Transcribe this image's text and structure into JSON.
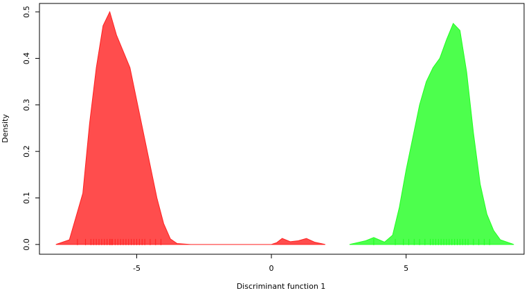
{
  "chart_data": {
    "type": "density",
    "x_label": "Discriminant function 1",
    "y_label": "Density",
    "xlim": [
      -8.61,
      9.38
    ],
    "ylim": [
      -0.021,
      0.518
    ],
    "xticks": [
      -5,
      0,
      5
    ],
    "yticks": [
      {
        "value": 0,
        "label": "0.0"
      },
      0.1,
      0.2,
      0.3,
      0.4,
      0.5
    ],
    "series": [
      {
        "color": "#ff2020",
        "x": [
          -8,
          -7.5,
          -7,
          -6.75,
          -6.5,
          -6.25,
          -6,
          -5.75,
          -5.5,
          -5.25,
          -5,
          -4.75,
          -4.5,
          -4.25,
          -4,
          -3.75,
          -3.5,
          -3,
          -2,
          -1,
          0,
          0.2,
          0.4,
          0.7,
          1.0,
          1.3,
          1.6,
          2.0
        ],
        "values": [
          0,
          0.01,
          0.11,
          0.26,
          0.38,
          0.47,
          0.5,
          0.45,
          0.415,
          0.38,
          0.31,
          0.24,
          0.17,
          0.1,
          0.045,
          0.012,
          0.002,
          0,
          0,
          0,
          0,
          0.004,
          0.013,
          0.006,
          0.008,
          0.013,
          0.005,
          0
        ],
        "rug": [
          -7.2,
          -6.9,
          -6.7,
          -6.6,
          -6.5,
          -6.4,
          -6.3,
          -6.2,
          -6.1,
          -6.0,
          -5.95,
          -5.9,
          -5.8,
          -5.7,
          -5.6,
          -5.5,
          -5.4,
          -5.3,
          -5.2,
          -5.1,
          -5.0,
          -4.9,
          -4.8,
          -4.7,
          -4.5,
          -4.3,
          -4.1
        ]
      },
      {
        "color": "#20ff20",
        "x": [
          2.9,
          3.5,
          3.8,
          4.2,
          4.5,
          4.75,
          5,
          5.5,
          5.75,
          6,
          6.25,
          6.5,
          6.75,
          7,
          7.25,
          7.5,
          7.75,
          8,
          8.25,
          8.5,
          9.0
        ],
        "values": [
          0,
          0.008,
          0.015,
          0.005,
          0.02,
          0.08,
          0.16,
          0.3,
          0.35,
          0.38,
          0.4,
          0.44,
          0.475,
          0.46,
          0.37,
          0.24,
          0.13,
          0.065,
          0.03,
          0.01,
          0
        ],
        "rug": [
          3.8,
          4.6,
          4.9,
          5.1,
          5.3,
          5.5,
          5.7,
          5.9,
          6.0,
          6.1,
          6.2,
          6.3,
          6.4,
          6.5,
          6.6,
          6.7,
          6.8,
          6.9,
          7.0,
          7.1,
          7.2,
          7.3,
          7.5,
          7.7,
          7.9,
          8.1
        ]
      }
    ]
  }
}
